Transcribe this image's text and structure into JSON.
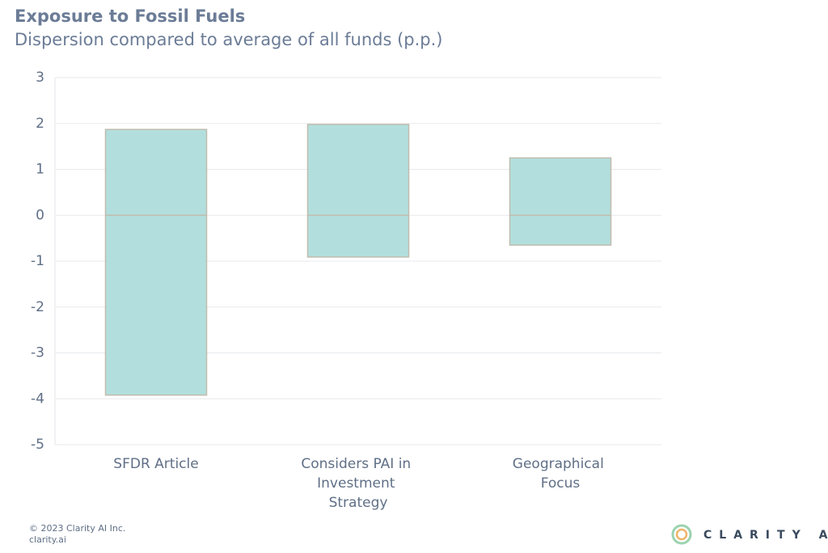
{
  "chart_data": {
    "type": "range_bar",
    "title": "Exposure to Fossil Fuels",
    "subtitle": "Dispersion compared to average of all funds (p.p.)",
    "categories": [
      "SFDR Article",
      "Considers PAI in Investment Strategy",
      "Geographical Focus"
    ],
    "low": [
      -3.92,
      -0.91,
      -0.65
    ],
    "high": [
      1.87,
      1.98,
      1.25
    ],
    "mid": [
      0,
      0,
      0
    ],
    "color": "#b2dfdd",
    "edge_color": "#c0bcae",
    "ylim": [
      -5,
      3
    ],
    "yticks": [
      -5,
      -4,
      -3,
      -2,
      -1,
      0,
      1,
      2,
      3
    ],
    "grid": true
  },
  "footer": {
    "copyright": "© 2023 Clarity AI Inc.",
    "site": "clarity.ai",
    "logo": "CLARITY AI"
  }
}
